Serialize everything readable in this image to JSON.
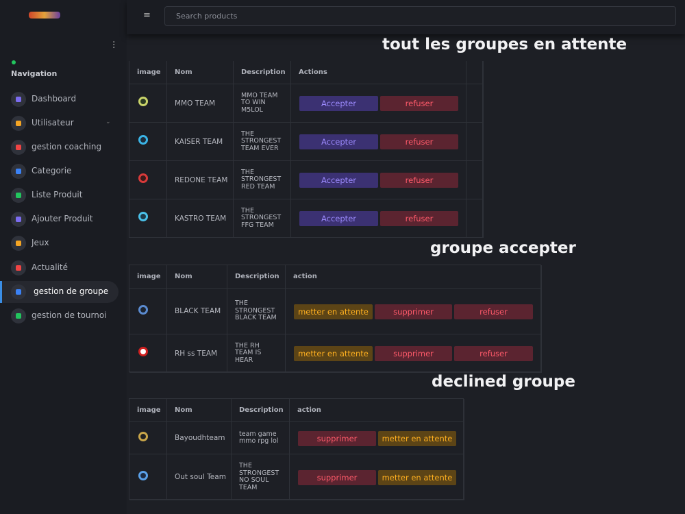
{
  "search_placeholder": "Search products",
  "sidebar": {
    "heading": "Navigation",
    "items": [
      "Dashboard",
      "Utilisateur",
      "gestion coaching",
      "Categorie",
      "Liste Produit",
      "Ajouter Produit",
      "Jeux",
      "Actualité",
      "gestion de groupe",
      "gestion de tournoi"
    ]
  },
  "sections": [
    {
      "title": "tout les groupes en attente",
      "columns": [
        "image",
        "Nom",
        "Description",
        "Actions"
      ],
      "rows": [
        {
          "name": "MMO TEAM",
          "description": "MMO TEAM TO WIN M5LOL",
          "actions": [
            "Accepter",
            "refuser"
          ]
        },
        {
          "name": "KAISER TEAM",
          "description": "THE STRONGEST TEAM EVER",
          "actions": [
            "Accepter",
            "refuser"
          ]
        },
        {
          "name": "REDONE TEAM",
          "description": "THE STRONGEST RED TEAM",
          "actions": [
            "Accepter",
            "refuser"
          ]
        },
        {
          "name": "KASTRO TEAM",
          "description": "THE STRONGEST FFG TEAM",
          "actions": [
            "Accepter",
            "refuser"
          ]
        }
      ]
    },
    {
      "title": "groupe accepter",
      "columns": [
        "image",
        "Nom",
        "Description",
        "action"
      ],
      "rows": [
        {
          "name": "BLACK TEAM",
          "description": "THE STRONGEST BLACK TEAM",
          "actions": [
            "metter en attente",
            "supprimer",
            "refuser"
          ]
        },
        {
          "name": "RH ss TEAM",
          "description": "THE RH TEAM IS HEAR",
          "actions": [
            "metter en attente",
            "supprimer",
            "refuser"
          ]
        }
      ]
    },
    {
      "title": "declined groupe",
      "columns": [
        "image",
        "Nom",
        "Description",
        "action"
      ],
      "rows": [
        {
          "name": "Bayoudhteam",
          "description": "team game mmo rpg lol",
          "actions": [
            "supprimer",
            "metter en attente"
          ]
        },
        {
          "name": "Out soul Team",
          "description": "THE STRONGEST NO SOUL TEAM",
          "actions": [
            "supprimer",
            "metter en attente"
          ]
        }
      ]
    }
  ]
}
